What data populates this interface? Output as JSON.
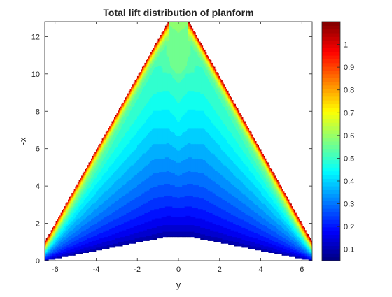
{
  "chart_data": {
    "type": "heatmap",
    "subtype": "filled-contour",
    "title": "Total lift distribution of planform",
    "xlabel": "y",
    "ylabel": "-x",
    "xlim": [
      -6.5,
      6.5
    ],
    "ylim": [
      0,
      12.8
    ],
    "xticks": [
      -6,
      -4,
      -2,
      0,
      2,
      4,
      6
    ],
    "xtick_labels": [
      "-6",
      "-4",
      "-2",
      "0",
      "2",
      "4",
      "6"
    ],
    "yticks": [
      0,
      2,
      4,
      6,
      8,
      10,
      12
    ],
    "ytick_labels": [
      "0",
      "2",
      "4",
      "6",
      "8",
      "10",
      "12"
    ],
    "colormap": "jet",
    "clim": [
      0.05,
      1.1
    ],
    "colorbar_ticks": [
      0.1,
      0.2,
      0.3,
      0.4,
      0.5,
      0.6,
      0.7,
      0.8,
      0.9,
      1
    ],
    "colorbar_tick_labels": [
      "0.1",
      "0.2",
      "0.3",
      "0.4",
      "0.5",
      "0.6",
      "0.7",
      "0.8",
      "0.9",
      "1"
    ],
    "planform_outline": {
      "y": [
        -6.5,
        -0.5,
        0.5,
        6.5,
        6.5,
        0.5,
        -0.5,
        -6.5
      ],
      "x": [
        1.0,
        12.8,
        12.8,
        1.0,
        0.0,
        1.3,
        1.3,
        0.0
      ]
    },
    "grid": false,
    "box": true
  }
}
